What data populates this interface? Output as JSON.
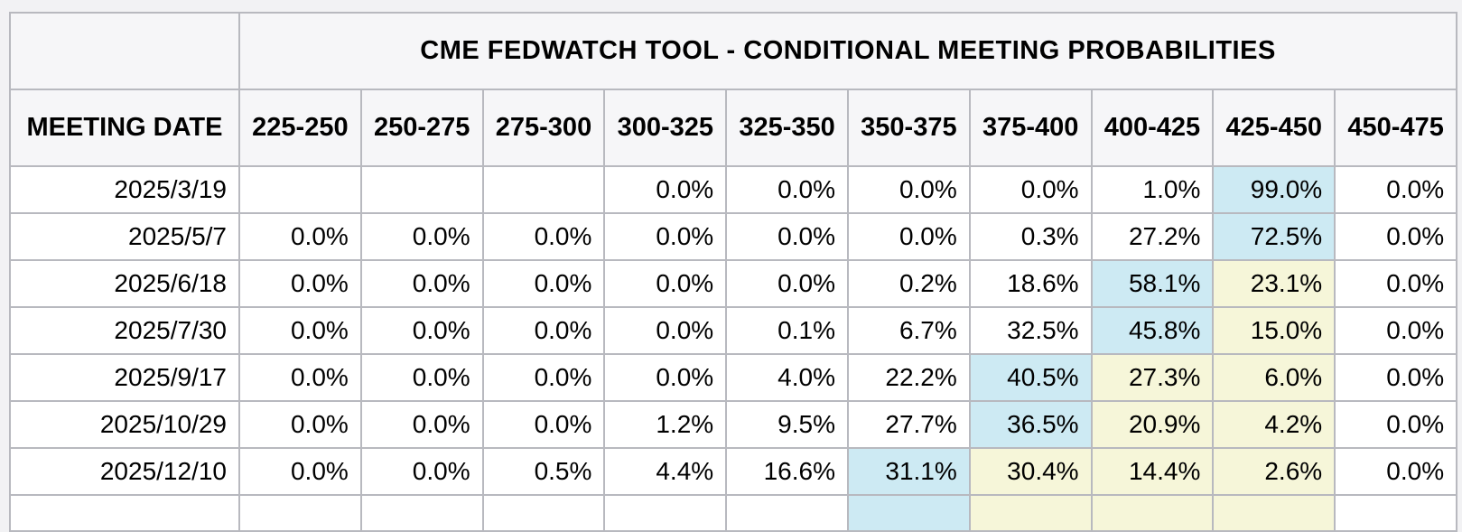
{
  "title": "CME FEDWATCH TOOL - CONDITIONAL MEETING PROBABILITIES",
  "columns": [
    "MEETING DATE",
    "225-250",
    "250-275",
    "275-300",
    "300-325",
    "325-350",
    "350-375",
    "375-400",
    "400-425",
    "425-450",
    "450-475"
  ],
  "rows": [
    {
      "date": "2025/3/19",
      "values": [
        "",
        "",
        "",
        "0.0%",
        "0.0%",
        "0.0%",
        "0.0%",
        "1.0%",
        "99.0%",
        "0.0%"
      ],
      "highlights": [
        "",
        "",
        "",
        "",
        "",
        "",
        "",
        "",
        "blue",
        ""
      ]
    },
    {
      "date": "2025/5/7",
      "values": [
        "0.0%",
        "0.0%",
        "0.0%",
        "0.0%",
        "0.0%",
        "0.0%",
        "0.3%",
        "27.2%",
        "72.5%",
        "0.0%"
      ],
      "highlights": [
        "",
        "",
        "",
        "",
        "",
        "",
        "",
        "",
        "blue",
        ""
      ]
    },
    {
      "date": "2025/6/18",
      "values": [
        "0.0%",
        "0.0%",
        "0.0%",
        "0.0%",
        "0.0%",
        "0.2%",
        "18.6%",
        "58.1%",
        "23.1%",
        "0.0%"
      ],
      "highlights": [
        "",
        "",
        "",
        "",
        "",
        "",
        "",
        "blue",
        "yellow",
        ""
      ]
    },
    {
      "date": "2025/7/30",
      "values": [
        "0.0%",
        "0.0%",
        "0.0%",
        "0.0%",
        "0.1%",
        "6.7%",
        "32.5%",
        "45.8%",
        "15.0%",
        "0.0%"
      ],
      "highlights": [
        "",
        "",
        "",
        "",
        "",
        "",
        "",
        "blue",
        "yellow",
        ""
      ]
    },
    {
      "date": "2025/9/17",
      "values": [
        "0.0%",
        "0.0%",
        "0.0%",
        "0.0%",
        "4.0%",
        "22.2%",
        "40.5%",
        "27.3%",
        "6.0%",
        "0.0%"
      ],
      "highlights": [
        "",
        "",
        "",
        "",
        "",
        "",
        "blue",
        "yellow",
        "yellow",
        ""
      ]
    },
    {
      "date": "2025/10/29",
      "values": [
        "0.0%",
        "0.0%",
        "0.0%",
        "1.2%",
        "9.5%",
        "27.7%",
        "36.5%",
        "20.9%",
        "4.2%",
        "0.0%"
      ],
      "highlights": [
        "",
        "",
        "",
        "",
        "",
        "",
        "blue",
        "yellow",
        "yellow",
        ""
      ]
    },
    {
      "date": "2025/12/10",
      "values": [
        "0.0%",
        "0.0%",
        "0.5%",
        "4.4%",
        "16.6%",
        "31.1%",
        "30.4%",
        "14.4%",
        "2.6%",
        "0.0%"
      ],
      "highlights": [
        "",
        "",
        "",
        "",
        "",
        "blue",
        "yellow",
        "yellow",
        "yellow",
        ""
      ]
    }
  ],
  "partial_row": {
    "date": "",
    "values": [
      "",
      "",
      "",
      "",
      "",
      "",
      "",
      "",
      "",
      ""
    ],
    "highlights": [
      "",
      "",
      "",
      "",
      "",
      "blue",
      "yellow",
      "yellow",
      "yellow",
      ""
    ]
  },
  "colors": {
    "highlight_blue": "#cdeaf3",
    "highlight_yellow": "#f6f6d9",
    "header_bg": "#f6f6f8",
    "row_bg": "#ffffff",
    "border": "#b8b9bf",
    "page_bg": "#f2f2f4",
    "text": "#000000"
  }
}
